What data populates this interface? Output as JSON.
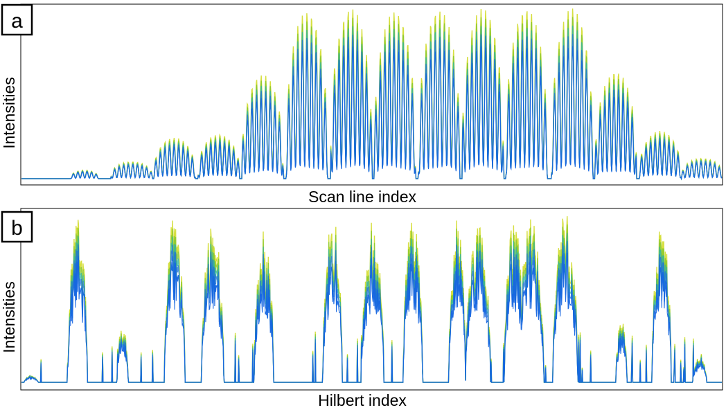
{
  "chart_data": [
    {
      "type": "line",
      "panel_label": "a",
      "xlabel": "Scan line index",
      "ylabel": "Intensities",
      "grid": false,
      "legend": "none",
      "ylim": [
        0,
        1
      ],
      "colors": [
        "#c8d400",
        "#7cc42a",
        "#2bb3a6",
        "#1e6fd8",
        "#1565e0"
      ],
      "series": [
        {
          "values": [
            0.05,
            0.1,
            0.24,
            0.26,
            0.61,
            0.98,
            1.0,
            0.98,
            0.99,
            1.0,
            1.0,
            1.0,
            0.63,
            0.28,
            0.12
          ]
        }
      ]
    },
    {
      "type": "line",
      "panel_label": "b",
      "xlabel": "Hilbert index",
      "ylabel": "Intensities",
      "grid": false,
      "legend": "none",
      "ylim": [
        0,
        1
      ],
      "colors": [
        "#c8d400",
        "#7cc42a",
        "#2bb3a6",
        "#1e6fd8",
        "#1565e0"
      ],
      "series": [
        {
          "values": [
            0.04,
            0.96,
            0.34,
            0.98,
            0.98,
            0.9,
            0.99,
            0.96,
            0.97,
            0.98,
            0.97,
            0.98,
            1.0,
            1.0,
            0.38,
            0.99,
            0.15
          ]
        }
      ]
    }
  ]
}
